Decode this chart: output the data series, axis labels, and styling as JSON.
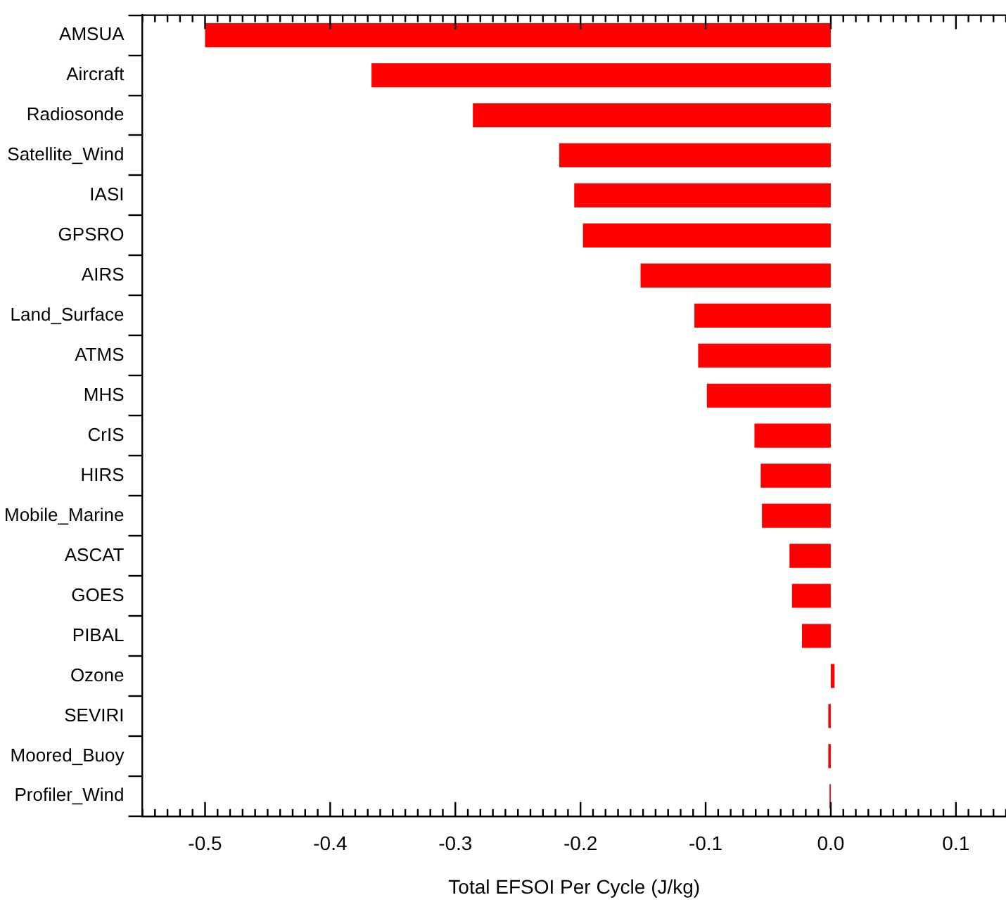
{
  "chart_data": {
    "type": "bar",
    "orientation": "horizontal",
    "xlabel": "Total EFSOI Per Cycle (J/kg)",
    "categories": [
      "AMSUA",
      "Aircraft",
      "Radiosonde",
      "Satellite_Wind",
      "IASI",
      "GPSRO",
      "AIRS",
      "Land_Surface",
      "ATMS",
      "MHS",
      "CrIS",
      "HIRS",
      "Mobile_Marine",
      "ASCAT",
      "GOES",
      "PIBAL",
      "Ozone",
      "SEVIRI",
      "Moored_Buoy",
      "Profiler_Wind"
    ],
    "values": [
      -0.5,
      -0.367,
      -0.286,
      -0.217,
      -0.205,
      -0.198,
      -0.152,
      -0.109,
      -0.106,
      -0.099,
      -0.061,
      -0.056,
      -0.055,
      -0.033,
      -0.031,
      -0.023,
      0.003,
      -0.002,
      -0.002,
      -0.001
    ],
    "color": "#ff0000",
    "xlim": [
      -0.55,
      0.14
    ],
    "xticks": [
      -0.5,
      -0.4,
      -0.3,
      -0.2,
      -0.1,
      {
        "value": 0,
        "label": "0.0"
      },
      0.1
    ],
    "grid": false,
    "legend": false
  }
}
